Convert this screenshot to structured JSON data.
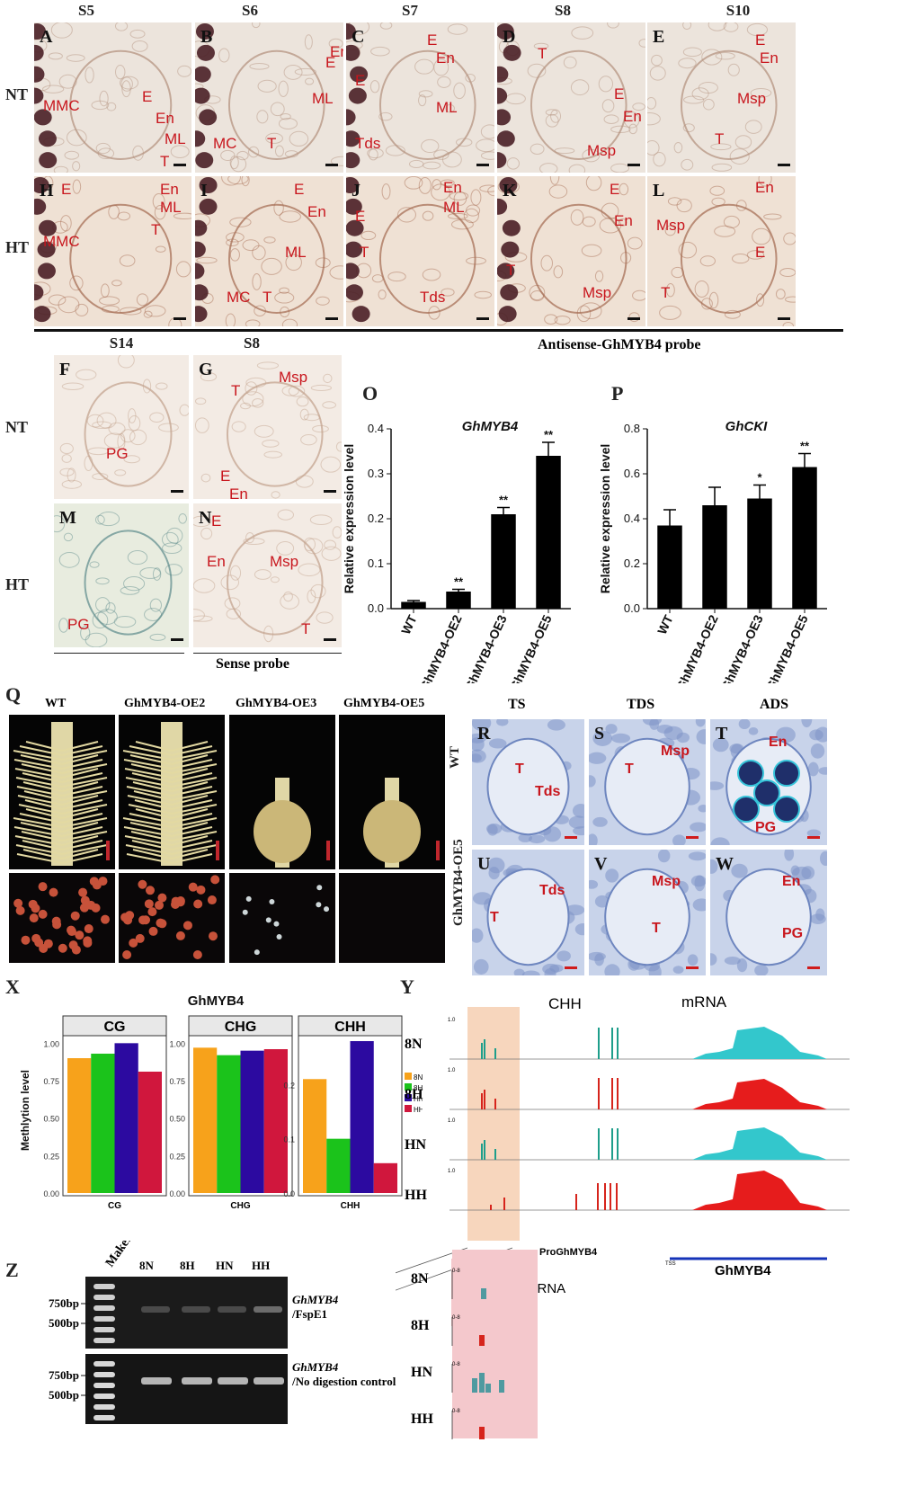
{
  "top_headers": [
    "S5",
    "S6",
    "S7",
    "S8",
    "S10"
  ],
  "row_labels": {
    "nt": "NT",
    "ht": "HT",
    "nt2": "NT",
    "ht2": "HT"
  },
  "panels_top": [
    {
      "letter": "A",
      "labels": [
        "MMC",
        "E",
        "En",
        "ML",
        "T"
      ]
    },
    {
      "letter": "B",
      "labels": [
        "E",
        "En",
        "ML",
        "MC",
        "T"
      ]
    },
    {
      "letter": "C",
      "labels": [
        "E",
        "En",
        "E",
        "ML",
        "Tds"
      ]
    },
    {
      "letter": "D",
      "labels": [
        "T",
        "E",
        "En",
        "Msp"
      ]
    },
    {
      "letter": "E",
      "labels": [
        "E",
        "En",
        "Msp",
        "T"
      ]
    },
    {
      "letter": "H",
      "labels": [
        "E",
        "En",
        "MMC",
        "ML",
        "T"
      ]
    },
    {
      "letter": "I",
      "labels": [
        "E",
        "En",
        "ML",
        "MC",
        "T"
      ]
    },
    {
      "letter": "J",
      "labels": [
        "En",
        "ML",
        "E",
        "T",
        "Tds"
      ]
    },
    {
      "letter": "K",
      "labels": [
        "E",
        "En",
        "T",
        "Msp"
      ]
    },
    {
      "letter": "L",
      "labels": [
        "En",
        "Msp",
        "E",
        "T"
      ]
    }
  ],
  "mid_headers": [
    "S14",
    "S8"
  ],
  "antisense_label": "Antisense-GhMYB4  probe",
  "sense_label": "Sense probe",
  "panels_mid": [
    {
      "letter": "F",
      "labels": [
        "PG"
      ]
    },
    {
      "letter": "G",
      "labels": [
        "T",
        "Msp",
        "E",
        "En"
      ]
    },
    {
      "letter": "M",
      "labels": [
        "PG"
      ]
    },
    {
      "letter": "N",
      "labels": [
        "E",
        "En",
        "Msp",
        "T"
      ]
    }
  ],
  "chart_O_letter": "O",
  "chart_P_letter": "P",
  "chart_data": [
    {
      "type": "bar",
      "title": "GhMYB4",
      "ylabel": "Relative expression level",
      "categories": [
        "WT",
        "GhMYB4-OE2",
        "GhMYB4-OE3",
        "GhMYB4-OE5"
      ],
      "values": [
        0.015,
        0.038,
        0.21,
        0.34
      ],
      "errors": [
        0.003,
        0.005,
        0.015,
        0.03
      ],
      "significance": [
        "",
        "**",
        "**",
        "**"
      ],
      "ylim": [
        0,
        0.4
      ],
      "yticks": [
        "0.0",
        "0.1",
        "0.2",
        "0.3",
        "0.4"
      ]
    },
    {
      "type": "bar",
      "title": "GhCKI",
      "ylabel": "Relative expression level",
      "categories": [
        "WT",
        "GhMYB4-OE2",
        "GhMYB4-OE3",
        "GhMYB4-OE5"
      ],
      "values": [
        0.37,
        0.46,
        0.49,
        0.63
      ],
      "errors": [
        0.07,
        0.08,
        0.06,
        0.06
      ],
      "significance": [
        "",
        "",
        "*",
        "**"
      ],
      "ylim": [
        0,
        0.8
      ],
      "yticks": [
        "0.0",
        "0.2",
        "0.4",
        "0.6",
        "0.8"
      ]
    },
    {
      "type": "bar",
      "ylabel": "Methlytion level",
      "facets": [
        "CG",
        "CHG",
        "CHH"
      ],
      "series": [
        {
          "name": "8N",
          "color": "#f7a21b"
        },
        {
          "name": "8H",
          "color": "#1bc31b"
        },
        {
          "name": "HN",
          "color": "#2c0aa0"
        },
        {
          "name": "HH",
          "color": "#d0173d"
        }
      ],
      "values": {
        "CG": [
          0.9,
          0.93,
          1.0,
          0.81
        ],
        "CHG": [
          0.97,
          0.92,
          0.95,
          0.96
        ],
        "CHH": [
          0.21,
          0.1,
          0.28,
          0.055
        ]
      },
      "ylims": {
        "CG": [
          0,
          1.05
        ],
        "CHG": [
          0,
          1.05
        ],
        "CHH": [
          0,
          0.29
        ]
      },
      "yticks": {
        "CG": [
          "0.00",
          "0.25",
          "0.50",
          "0.75",
          "1.00"
        ],
        "CHH": [
          "0.0",
          "0.1",
          "0.2"
        ]
      }
    }
  ],
  "Q": {
    "letter": "Q",
    "cols": [
      "WT",
      "GhMYB4-OE2",
      "GhMYB4-OE3",
      "GhMYB4-OE5"
    ]
  },
  "RW": {
    "headers": [
      "TS",
      "TDS",
      "ADS"
    ],
    "rows": [
      "WT",
      "GhMYB4-OE5"
    ],
    "panels": [
      {
        "letter": "R",
        "labels": [
          "T",
          "Tds"
        ]
      },
      {
        "letter": "S",
        "labels": [
          "Msp",
          "T"
        ]
      },
      {
        "letter": "T",
        "labels": [
          "En",
          "PG"
        ]
      },
      {
        "letter": "U",
        "labels": [
          "Tds",
          "T"
        ]
      },
      {
        "letter": "V",
        "labels": [
          "Msp",
          "T"
        ]
      },
      {
        "letter": "W",
        "labels": [
          "En",
          "PG"
        ]
      }
    ]
  },
  "X": {
    "letter": "X",
    "title": "GhMYB4"
  },
  "Y": {
    "letter": "Y",
    "chh_label": "CHH",
    "mrna_label": "mRNA",
    "tracks": [
      "8N",
      "8H",
      "HN",
      "HH"
    ],
    "promoter": "ProGhMYB4",
    "gene": "GhMYB4",
    "tss": "TSS",
    "srna_label": "sRNA",
    "srna_tracks": [
      "8N",
      "8H",
      "HN",
      "HH"
    ],
    "scale": "0-8",
    "ymax": "1.0",
    "ymid": "0.5"
  },
  "Z": {
    "letter": "Z",
    "lanes": [
      "Maker",
      "8N",
      "8H",
      "HN",
      "HH"
    ],
    "markers": [
      "750bp",
      "500bp"
    ],
    "gel1_caption": [
      "GhMYB4",
      "/FspE1"
    ],
    "gel2_caption": [
      "GhMYB4",
      "/No digestion control"
    ]
  }
}
